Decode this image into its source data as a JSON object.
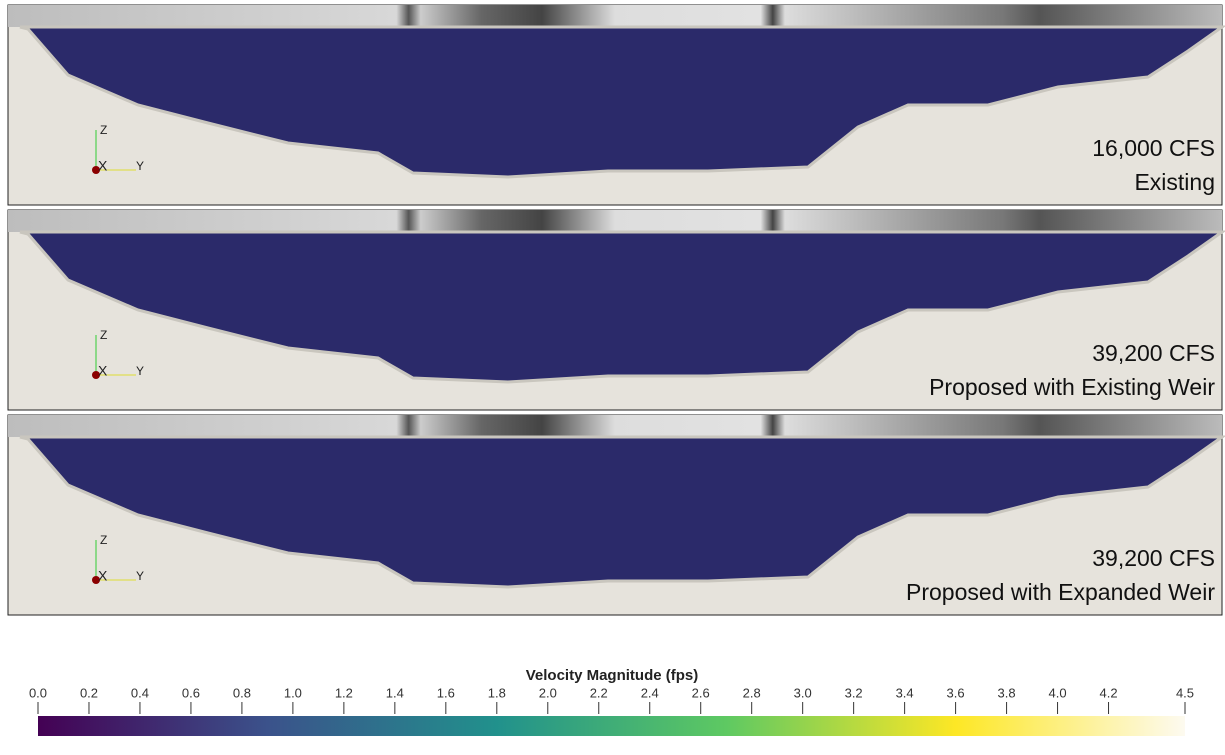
{
  "panels": [
    {
      "flow": "16,000 CFS",
      "scenario": "Existing"
    },
    {
      "flow": "39,200 CFS",
      "scenario": "Proposed with Existing Weir"
    },
    {
      "flow": "39,200 CFS",
      "scenario": "Proposed with Expanded Weir"
    }
  ],
  "axes_labels": {
    "z": "Z",
    "x": "X",
    "y": "Y"
  },
  "colorbar": {
    "title": "Velocity Magnitude (fps)",
    "lim": [
      0,
      4.5
    ],
    "colors": [
      "#440154",
      "#3b528b",
      "#21918c",
      "#5ec962",
      "#fde725",
      "#fdfaf0"
    ],
    "ticks": [
      {
        "value": 0,
        "label": "0.0"
      },
      0.2,
      0.4,
      0.6,
      0.8,
      {
        "value": 1,
        "label": "1.0"
      },
      1.2,
      1.4,
      1.6,
      1.8,
      {
        "value": 2,
        "label": "2.0"
      },
      2.2,
      2.4,
      2.6,
      2.8,
      {
        "value": 3,
        "label": "3.0"
      },
      3.2,
      3.4,
      3.6,
      3.8,
      {
        "value": 4,
        "label": "4.0"
      },
      4.2,
      4.5
    ]
  }
}
